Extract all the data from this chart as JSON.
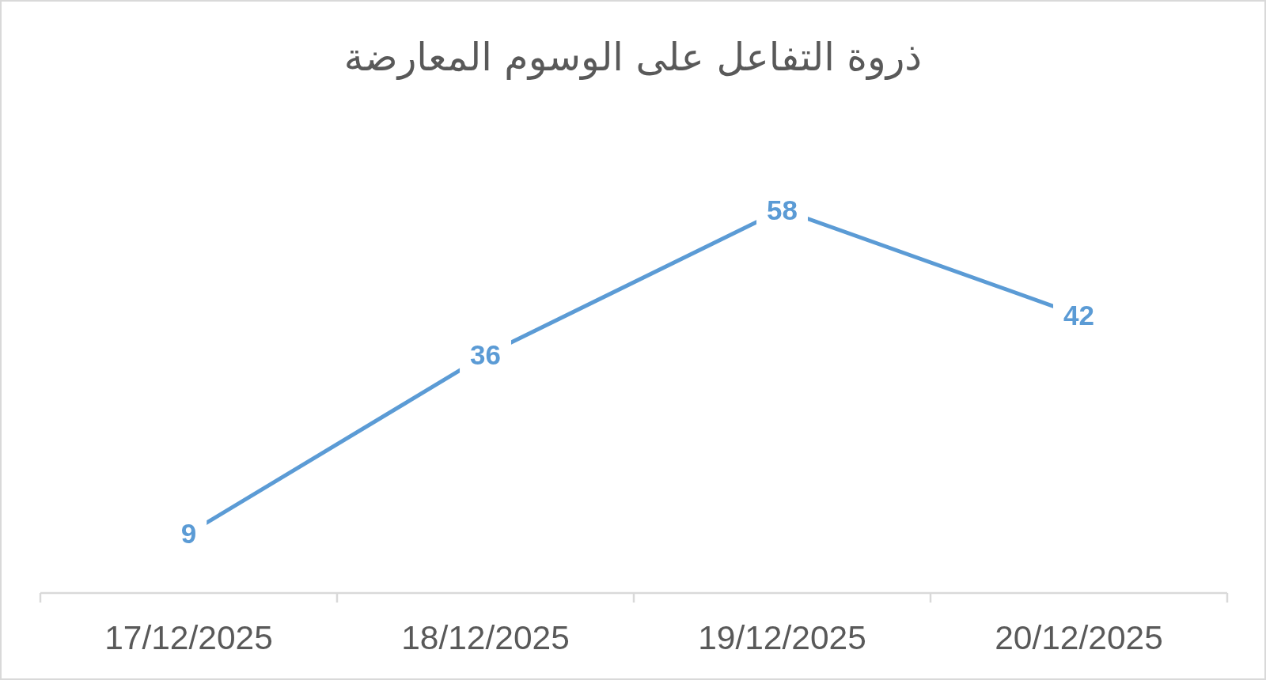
{
  "chart_data": {
    "type": "line",
    "title": "ذروة التفاعل على الوسوم المعارضة",
    "categories": [
      "17/12/2025",
      "18/12/2025",
      "19/12/2025",
      "20/12/2025"
    ],
    "series": [
      {
        "color": "#5b9bd5",
        "values": [
          9,
          36,
          58,
          42
        ]
      }
    ],
    "data_labels": true,
    "marker": "none",
    "line_style": "solid"
  }
}
